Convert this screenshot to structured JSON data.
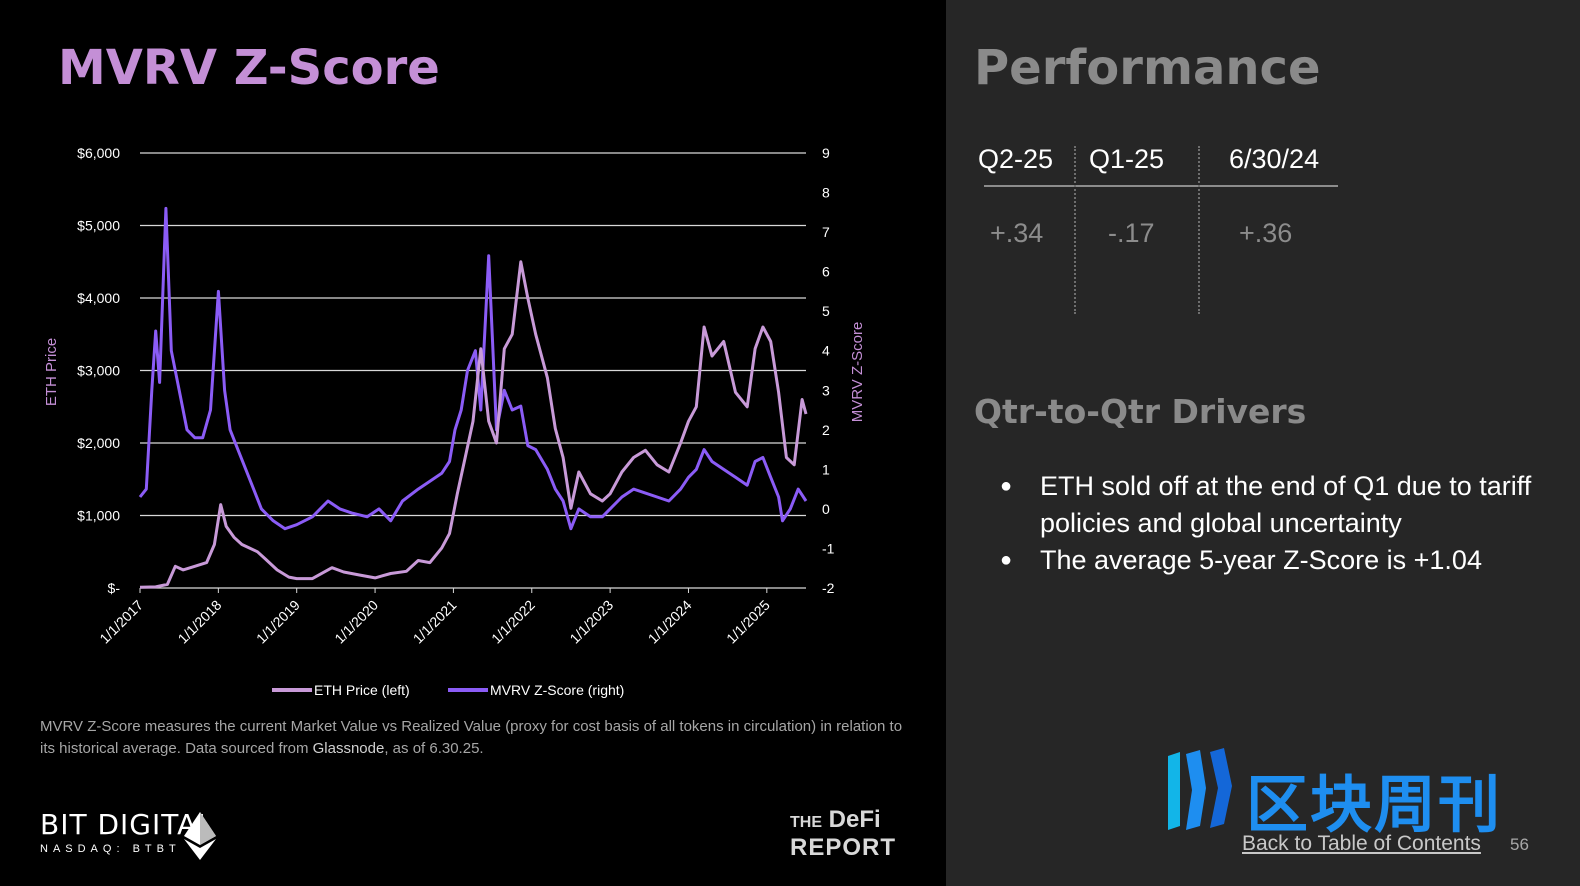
{
  "left_panel": {
    "title": "MVRV Z-Score",
    "footnote_text": "MVRV Z-Score  measures the current Market Value vs Realized Value (proxy for cost basis of all tokens in circulation) in relation to its historical average. Data sourced from ",
    "footnote_source": "Glassnode",
    "footnote_suffix": ", as of 6.30.25."
  },
  "logos": {
    "bit_digital_name": "BIT DIGITAL",
    "bit_digital_ticker": "NASDAQ: BTBT",
    "defi_the": "THE",
    "defi_word": "DeFi",
    "defi_report": "REPORT",
    "watermark_text": "区块周刊"
  },
  "right_panel": {
    "title": "Performance",
    "columns": [
      {
        "header": "Q2-25",
        "value": "+.34"
      },
      {
        "header": "Q1-25",
        "value": "-.17"
      },
      {
        "header": "6/30/24",
        "value": "+.36"
      }
    ],
    "drivers_title": "Qtr-to-Qtr Drivers",
    "bullets": [
      "ETH sold off at the end of Q1 due to tariff policies and global uncertainty",
      "The average 5-year Z-Score is +1.04"
    ],
    "toc_link": "Back to Table of Contents",
    "page_number": "56"
  },
  "chart_data": {
    "type": "line",
    "title": "",
    "ylabel_left": "ETH Price",
    "ylabel_right": "MVRV Z-Score",
    "y_left_range": [
      0,
      6000
    ],
    "y_left_ticks": [
      0,
      1000,
      2000,
      3000,
      4000,
      5000,
      6000
    ],
    "y_left_tick_labels": [
      "$-",
      "$1,000",
      "$2,000",
      "$3,000",
      "$4,000",
      "$5,000",
      "$6,000"
    ],
    "y_right_range": [
      -2,
      9
    ],
    "y_right_ticks": [
      -2,
      -1,
      0,
      1,
      2,
      3,
      4,
      5,
      6,
      7,
      8,
      9
    ],
    "x_range": [
      2017.0,
      2025.5
    ],
    "x_ticks": [
      2017,
      2018,
      2019,
      2020,
      2021,
      2022,
      2023,
      2024,
      2025
    ],
    "x_tick_labels": [
      "1/1/2017",
      "1/1/2018",
      "1/1/2019",
      "1/1/2020",
      "1/1/2021",
      "1/1/2022",
      "1/1/2023",
      "1/1/2024",
      "1/1/2025"
    ],
    "grid": true,
    "legend_position": "bottom",
    "series": [
      {
        "name": "ETH Price (left)",
        "axis": "left",
        "color": "#c89ad8",
        "x": [
          2017.0,
          2017.2,
          2017.35,
          2017.45,
          2017.55,
          2017.7,
          2017.85,
          2017.95,
          2018.03,
          2018.1,
          2018.2,
          2018.3,
          2018.4,
          2018.5,
          2018.6,
          2018.75,
          2018.9,
          2019.0,
          2019.2,
          2019.45,
          2019.6,
          2019.8,
          2020.0,
          2020.2,
          2020.4,
          2020.55,
          2020.7,
          2020.85,
          2020.95,
          2021.05,
          2021.15,
          2021.25,
          2021.35,
          2021.45,
          2021.55,
          2021.65,
          2021.75,
          2021.86,
          2021.95,
          2022.05,
          2022.2,
          2022.3,
          2022.4,
          2022.5,
          2022.6,
          2022.75,
          2022.9,
          2023.0,
          2023.15,
          2023.3,
          2023.45,
          2023.6,
          2023.75,
          2023.9,
          2024.0,
          2024.1,
          2024.2,
          2024.3,
          2024.45,
          2024.6,
          2024.75,
          2024.85,
          2024.95,
          2025.05,
          2025.15,
          2025.25,
          2025.35,
          2025.45,
          2025.5
        ],
        "y": [
          10,
          15,
          50,
          300,
          250,
          300,
          350,
          600,
          1150,
          850,
          700,
          600,
          550,
          500,
          400,
          250,
          150,
          130,
          130,
          280,
          220,
          180,
          140,
          200,
          230,
          380,
          350,
          550,
          750,
          1300,
          1800,
          2300,
          3300,
          2300,
          2000,
          3300,
          3500,
          4500,
          4000,
          3500,
          2900,
          2200,
          1800,
          1100,
          1600,
          1300,
          1200,
          1300,
          1600,
          1800,
          1900,
          1700,
          1600,
          2000,
          2300,
          2500,
          3600,
          3200,
          3400,
          2700,
          2500,
          3300,
          3600,
          3400,
          2700,
          1800,
          1700,
          2600,
          2400
        ]
      },
      {
        "name": "MVRV Z-Score (right)",
        "axis": "right",
        "color": "#8b5cf6",
        "x": [
          2017.0,
          2017.08,
          2017.15,
          2017.2,
          2017.25,
          2017.33,
          2017.4,
          2017.5,
          2017.6,
          2017.7,
          2017.8,
          2017.9,
          2018.0,
          2018.08,
          2018.15,
          2018.25,
          2018.35,
          2018.45,
          2018.55,
          2018.7,
          2018.85,
          2019.0,
          2019.2,
          2019.4,
          2019.55,
          2019.7,
          2019.9,
          2020.05,
          2020.2,
          2020.35,
          2020.55,
          2020.7,
          2020.85,
          2020.95,
          2021.02,
          2021.1,
          2021.18,
          2021.28,
          2021.35,
          2021.45,
          2021.55,
          2021.65,
          2021.75,
          2021.86,
          2021.95,
          2022.05,
          2022.2,
          2022.3,
          2022.4,
          2022.5,
          2022.6,
          2022.75,
          2022.9,
          2023.0,
          2023.15,
          2023.3,
          2023.45,
          2023.6,
          2023.75,
          2023.9,
          2024.0,
          2024.1,
          2024.2,
          2024.3,
          2024.45,
          2024.6,
          2024.75,
          2024.85,
          2024.95,
          2025.05,
          2025.15,
          2025.2,
          2025.3,
          2025.4,
          2025.5
        ],
        "y": [
          0.3,
          0.5,
          3.0,
          4.5,
          3.2,
          7.6,
          4.0,
          3.0,
          2.0,
          1.8,
          1.8,
          2.5,
          5.5,
          3.0,
          2.0,
          1.5,
          1.0,
          0.5,
          0.0,
          -0.3,
          -0.5,
          -0.4,
          -0.2,
          0.2,
          0.0,
          -0.1,
          -0.2,
          0.0,
          -0.3,
          0.2,
          0.5,
          0.7,
          0.9,
          1.2,
          2.0,
          2.5,
          3.5,
          4.0,
          2.5,
          6.4,
          2.0,
          3.0,
          2.5,
          2.6,
          1.6,
          1.5,
          1.0,
          0.5,
          0.2,
          -0.5,
          0.0,
          -0.2,
          -0.2,
          0.0,
          0.3,
          0.5,
          0.4,
          0.3,
          0.2,
          0.5,
          0.8,
          1.0,
          1.5,
          1.2,
          1.0,
          0.8,
          0.6,
          1.2,
          1.3,
          0.8,
          0.3,
          -0.3,
          0.0,
          0.5,
          0.2
        ]
      }
    ]
  }
}
